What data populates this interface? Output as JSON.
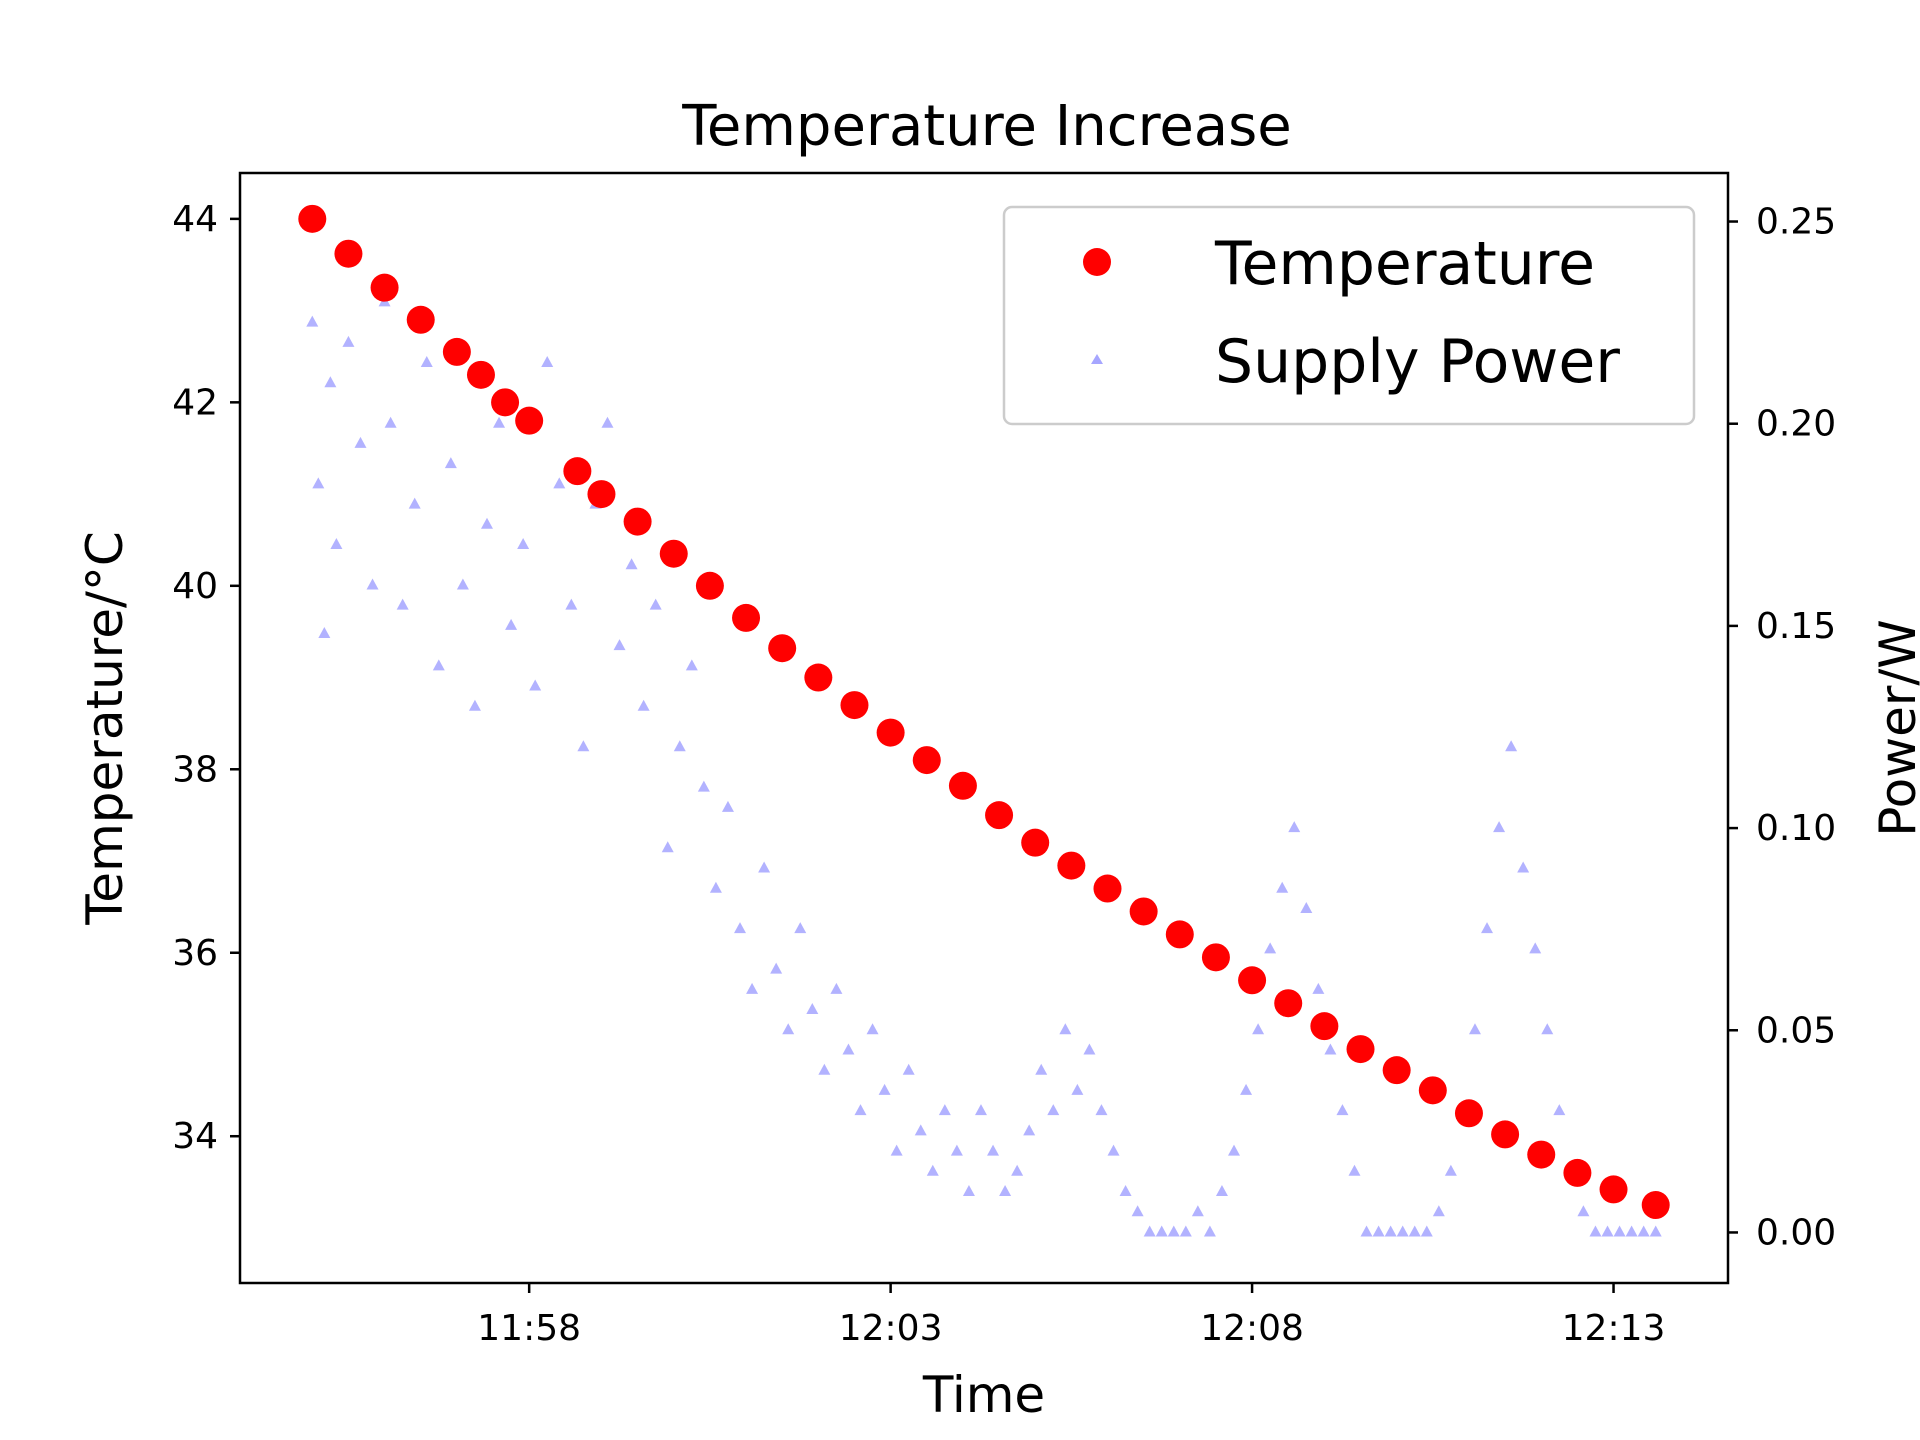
{
  "chart_data": {
    "type": "scatter",
    "title": "Temperature Increase",
    "xlabel": "Time",
    "ylabel_left": "Temperature/°C",
    "ylabel_right": "Power/W",
    "x_ticks": [
      "11:58",
      "12:03",
      "12:08",
      "12:13"
    ],
    "xlim": [
      "11:54:00",
      "12:14:35"
    ],
    "ylim_left": [
      32.4,
      44.5
    ],
    "ylim_right": [
      -0.0125,
      0.262
    ],
    "yticks_left": [
      34,
      36,
      38,
      40,
      42,
      44
    ],
    "yticks_right": [
      "0.00",
      "0.05",
      "0.10",
      "0.15",
      "0.20",
      "0.25"
    ],
    "legend": {
      "position": "upper right",
      "entries": [
        "Temperature",
        "Supply Power"
      ]
    },
    "colors": {
      "temperature": "#ff0000",
      "power": "#0000ff"
    },
    "series": [
      {
        "name": "Temperature",
        "axis": "left",
        "marker": "circle",
        "points": [
          [
            "11:55:00",
            44.0
          ],
          [
            "11:55:30",
            43.62
          ],
          [
            "11:56:00",
            43.25
          ],
          [
            "11:56:30",
            42.9
          ],
          [
            "11:57:00",
            42.55
          ],
          [
            "11:57:20",
            42.3
          ],
          [
            "11:57:40",
            42.0
          ],
          [
            "11:58:00",
            41.8
          ],
          [
            "11:58:40",
            41.25
          ],
          [
            "11:59:00",
            41.0
          ],
          [
            "11:59:30",
            40.7
          ],
          [
            "12:00:00",
            40.35
          ],
          [
            "12:00:30",
            40.0
          ],
          [
            "12:01:00",
            39.65
          ],
          [
            "12:01:30",
            39.32
          ],
          [
            "12:02:00",
            39.0
          ],
          [
            "12:02:30",
            38.7
          ],
          [
            "12:03:00",
            38.4
          ],
          [
            "12:03:30",
            38.1
          ],
          [
            "12:04:00",
            37.82
          ],
          [
            "12:04:30",
            37.5
          ],
          [
            "12:05:00",
            37.2
          ],
          [
            "12:05:30",
            36.95
          ],
          [
            "12:06:00",
            36.7
          ],
          [
            "12:06:30",
            36.45
          ],
          [
            "12:07:00",
            36.2
          ],
          [
            "12:07:30",
            35.95
          ],
          [
            "12:08:00",
            35.7
          ],
          [
            "12:08:30",
            35.45
          ],
          [
            "12:09:00",
            35.2
          ],
          [
            "12:09:30",
            34.95
          ],
          [
            "12:10:00",
            34.72
          ],
          [
            "12:10:30",
            34.5
          ],
          [
            "12:11:00",
            34.25
          ],
          [
            "12:11:30",
            34.02
          ],
          [
            "12:12:00",
            33.8
          ],
          [
            "12:12:30",
            33.6
          ],
          [
            "12:13:00",
            33.42
          ],
          [
            "12:13:35",
            33.25
          ]
        ]
      },
      {
        "name": "Supply Power",
        "axis": "right",
        "marker": "triangle",
        "alpha": 0.3,
        "points": [
          [
            "11:55:00",
            0.225
          ],
          [
            "11:55:05",
            0.185
          ],
          [
            "11:55:10",
            0.148
          ],
          [
            "11:55:15",
            0.21
          ],
          [
            "11:55:20",
            0.17
          ],
          [
            "11:55:30",
            0.22
          ],
          [
            "11:55:40",
            0.195
          ],
          [
            "11:55:50",
            0.16
          ],
          [
            "11:56:00",
            0.23
          ],
          [
            "11:56:05",
            0.2
          ],
          [
            "11:56:15",
            0.155
          ],
          [
            "11:56:25",
            0.18
          ],
          [
            "11:56:35",
            0.215
          ],
          [
            "11:56:45",
            0.14
          ],
          [
            "11:56:55",
            0.19
          ],
          [
            "11:57:05",
            0.16
          ],
          [
            "11:57:15",
            0.13
          ],
          [
            "11:57:25",
            0.175
          ],
          [
            "11:57:35",
            0.2
          ],
          [
            "11:57:45",
            0.15
          ],
          [
            "11:57:55",
            0.17
          ],
          [
            "11:58:05",
            0.135
          ],
          [
            "11:58:15",
            0.215
          ],
          [
            "11:58:25",
            0.185
          ],
          [
            "11:58:35",
            0.155
          ],
          [
            "11:58:45",
            0.12
          ],
          [
            "11:58:55",
            0.18
          ],
          [
            "11:59:05",
            0.2
          ],
          [
            "11:59:15",
            0.145
          ],
          [
            "11:59:25",
            0.165
          ],
          [
            "11:59:35",
            0.13
          ],
          [
            "11:59:45",
            0.155
          ],
          [
            "11:59:55",
            0.095
          ],
          [
            "12:00:05",
            0.12
          ],
          [
            "12:00:15",
            0.14
          ],
          [
            "12:00:25",
            0.11
          ],
          [
            "12:00:35",
            0.085
          ],
          [
            "12:00:45",
            0.105
          ],
          [
            "12:00:55",
            0.075
          ],
          [
            "12:01:05",
            0.06
          ],
          [
            "12:01:15",
            0.09
          ],
          [
            "12:01:25",
            0.065
          ],
          [
            "12:01:35",
            0.05
          ],
          [
            "12:01:45",
            0.075
          ],
          [
            "12:01:55",
            0.055
          ],
          [
            "12:02:05",
            0.04
          ],
          [
            "12:02:15",
            0.06
          ],
          [
            "12:02:25",
            0.045
          ],
          [
            "12:02:35",
            0.03
          ],
          [
            "12:02:45",
            0.05
          ],
          [
            "12:02:55",
            0.035
          ],
          [
            "12:03:05",
            0.02
          ],
          [
            "12:03:15",
            0.04
          ],
          [
            "12:03:25",
            0.025
          ],
          [
            "12:03:35",
            0.015
          ],
          [
            "12:03:45",
            0.03
          ],
          [
            "12:03:55",
            0.02
          ],
          [
            "12:04:05",
            0.01
          ],
          [
            "12:04:15",
            0.03
          ],
          [
            "12:04:25",
            0.02
          ],
          [
            "12:04:35",
            0.01
          ],
          [
            "12:04:45",
            0.015
          ],
          [
            "12:04:55",
            0.025
          ],
          [
            "12:05:05",
            0.04
          ],
          [
            "12:05:15",
            0.03
          ],
          [
            "12:05:25",
            0.05
          ],
          [
            "12:05:35",
            0.035
          ],
          [
            "12:05:45",
            0.045
          ],
          [
            "12:05:55",
            0.03
          ],
          [
            "12:06:05",
            0.02
          ],
          [
            "12:06:15",
            0.01
          ],
          [
            "12:06:25",
            0.005
          ],
          [
            "12:06:35",
            0.0
          ],
          [
            "12:06:45",
            0.0
          ],
          [
            "12:06:55",
            0.0
          ],
          [
            "12:07:05",
            0.0
          ],
          [
            "12:07:15",
            0.005
          ],
          [
            "12:07:25",
            0.0
          ],
          [
            "12:07:35",
            0.01
          ],
          [
            "12:07:45",
            0.02
          ],
          [
            "12:07:55",
            0.035
          ],
          [
            "12:08:05",
            0.05
          ],
          [
            "12:08:15",
            0.07
          ],
          [
            "12:08:25",
            0.085
          ],
          [
            "12:08:35",
            0.1
          ],
          [
            "12:08:45",
            0.08
          ],
          [
            "12:08:55",
            0.06
          ],
          [
            "12:09:05",
            0.045
          ],
          [
            "12:09:15",
            0.03
          ],
          [
            "12:09:25",
            0.015
          ],
          [
            "12:09:35",
            0.0
          ],
          [
            "12:09:45",
            0.0
          ],
          [
            "12:09:55",
            0.0
          ],
          [
            "12:10:05",
            0.0
          ],
          [
            "12:10:15",
            0.0
          ],
          [
            "12:10:25",
            0.0
          ],
          [
            "12:10:35",
            0.005
          ],
          [
            "12:10:45",
            0.015
          ],
          [
            "12:10:55",
            0.03
          ],
          [
            "12:11:05",
            0.05
          ],
          [
            "12:11:15",
            0.075
          ],
          [
            "12:11:25",
            0.1
          ],
          [
            "12:11:35",
            0.12
          ],
          [
            "12:11:45",
            0.09
          ],
          [
            "12:11:55",
            0.07
          ],
          [
            "12:12:05",
            0.05
          ],
          [
            "12:12:15",
            0.03
          ],
          [
            "12:12:25",
            0.015
          ],
          [
            "12:12:35",
            0.005
          ],
          [
            "12:12:45",
            0.0
          ],
          [
            "12:12:55",
            0.0
          ],
          [
            "12:13:05",
            0.0
          ],
          [
            "12:13:15",
            0.0
          ],
          [
            "12:13:25",
            0.0
          ],
          [
            "12:13:35",
            0.0
          ]
        ]
      }
    ]
  }
}
